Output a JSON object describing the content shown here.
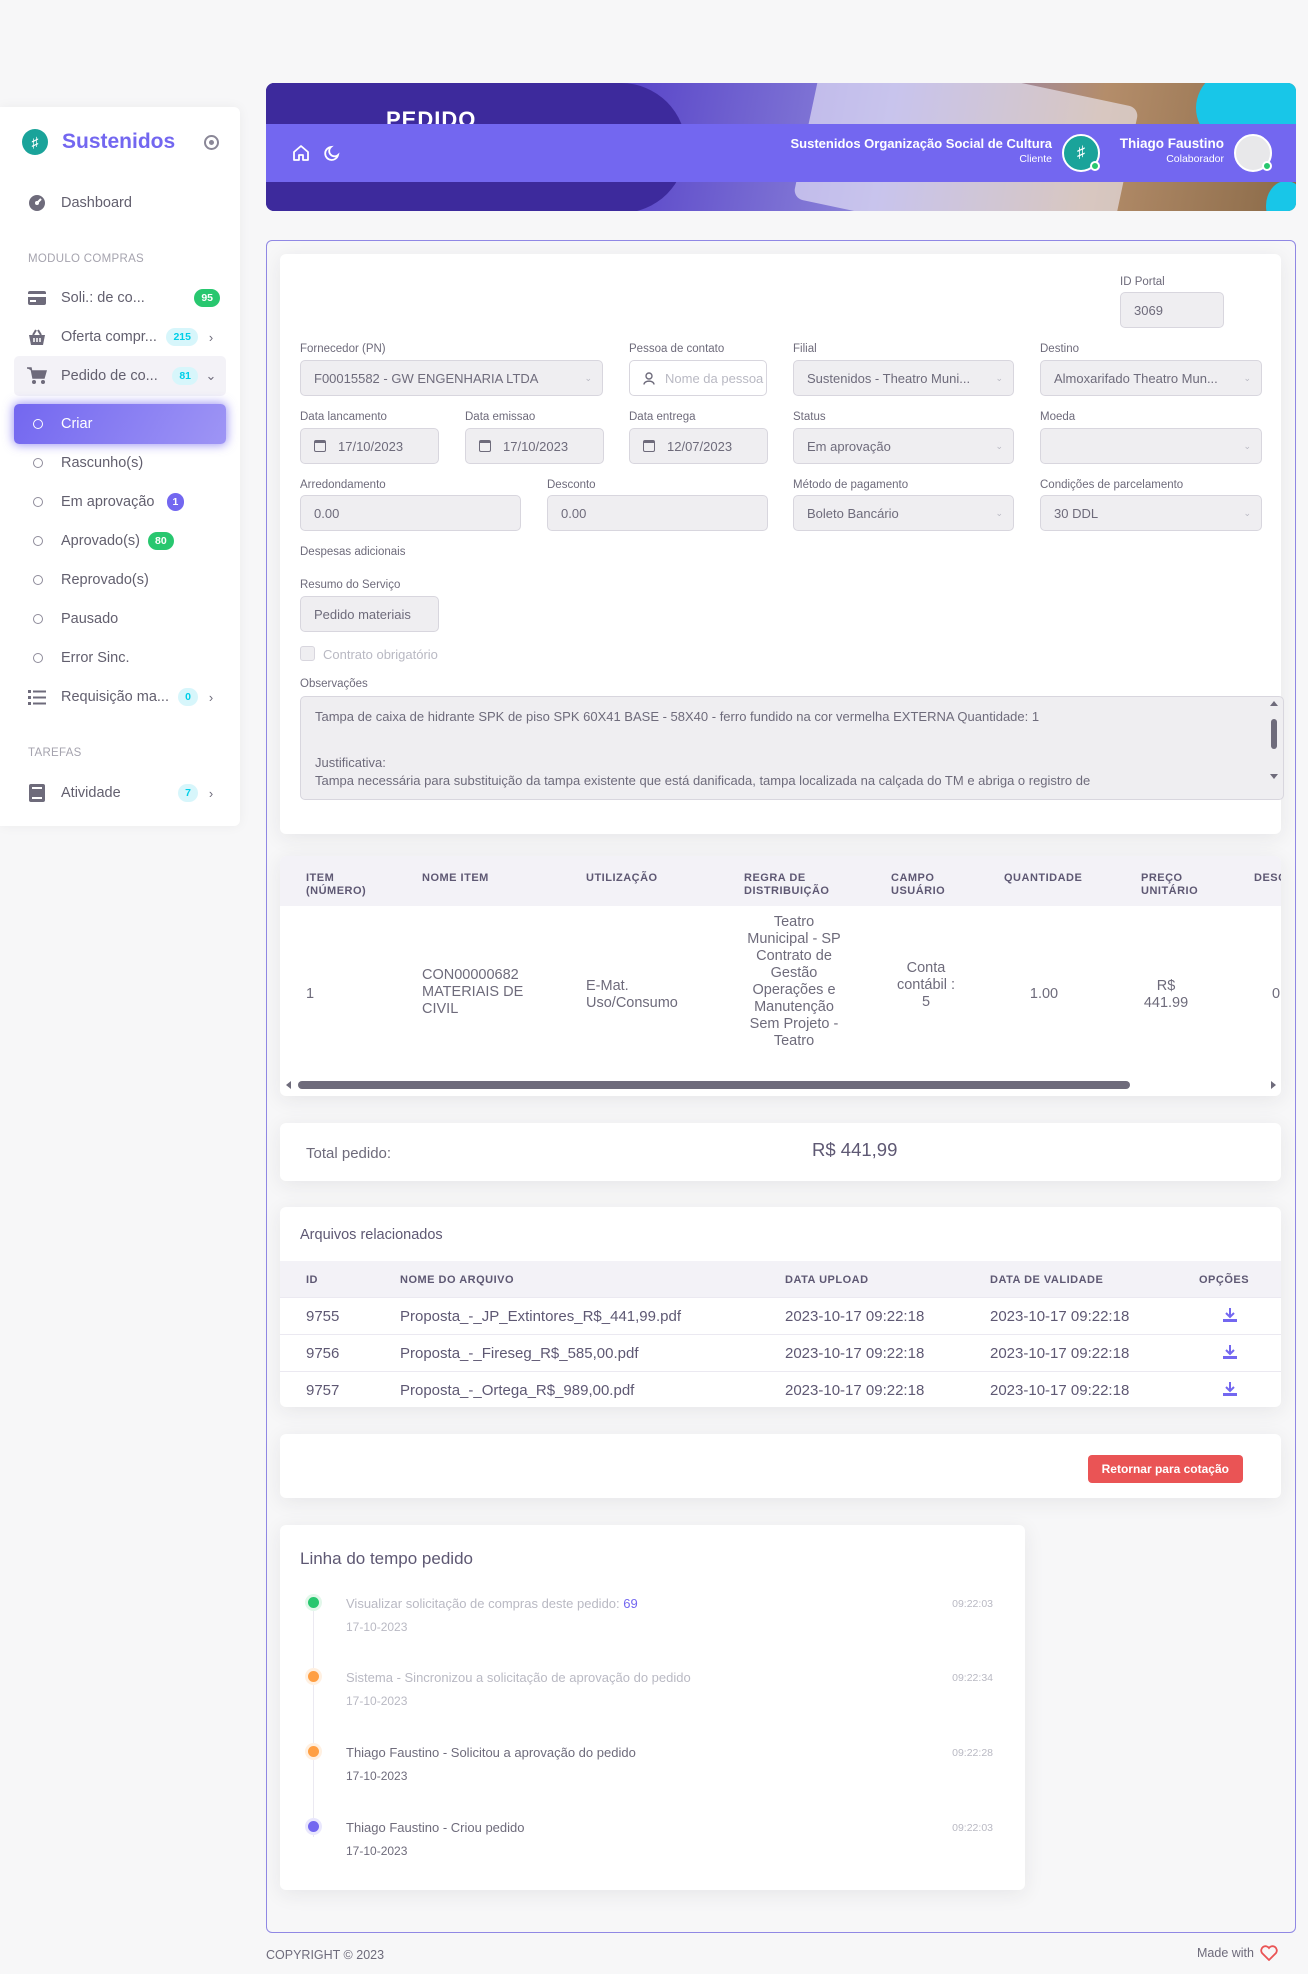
{
  "brand": {
    "name": "Sustenidos"
  },
  "sidebar": {
    "dashboard": "Dashboard",
    "section_compras": "MODULO COMPRAS",
    "solicitacao": {
      "label": "Soli.: de co...",
      "badge": "95"
    },
    "oferta": {
      "label": "Oferta compr...",
      "badge": "215"
    },
    "pedido": {
      "label": "Pedido de co...",
      "badge": "81"
    },
    "sub": [
      {
        "label": "Criar"
      },
      {
        "label": "Rascunho(s)"
      },
      {
        "label": "Em aprovação",
        "badge": "1"
      },
      {
        "label": "Aprovado(s)",
        "badge": "80"
      },
      {
        "label": "Reprovado(s)"
      },
      {
        "label": "Pausado"
      },
      {
        "label": "Error Sinc."
      }
    ],
    "requisicao": {
      "label": "Requisição ma...",
      "badge": "0"
    },
    "section_tarefas": "TAREFAS",
    "atividade": {
      "label": "Atividade",
      "badge": "7"
    }
  },
  "header": {
    "banner_title": "PEDIDO",
    "org_name": "Sustenidos Organização Social de Cultura",
    "org_role": "Cliente",
    "user_name": "Thiago Faustino",
    "user_role": "Colaborador"
  },
  "form": {
    "id_portal": {
      "label": "ID Portal",
      "value": "3069"
    },
    "fornecedor": {
      "label": "Fornecedor (PN)",
      "value": "F00015582 - GW ENGENHARIA LTDA"
    },
    "contato": {
      "label": "Pessoa de contato",
      "placeholder": "Nome da pessoa"
    },
    "filial": {
      "label": "Filial",
      "value": "Sustenidos - Theatro Muni..."
    },
    "destino": {
      "label": "Destino",
      "value": "Almoxarifado Theatro Mun..."
    },
    "data_lancamento": {
      "label": "Data lancamento",
      "value": "17/10/2023"
    },
    "data_emissao": {
      "label": "Data emissao",
      "value": "17/10/2023"
    },
    "data_entrega": {
      "label": "Data entrega",
      "value": "12/07/2023"
    },
    "status": {
      "label": "Status",
      "value": "Em aprovação"
    },
    "moeda": {
      "label": "Moeda",
      "value": ""
    },
    "arredondamento": {
      "label": "Arredondamento",
      "value": "0.00"
    },
    "desconto": {
      "label": "Desconto",
      "value": "0.00"
    },
    "metodo": {
      "label": "Método de pagamento",
      "value": "Boleto Bancário"
    },
    "condicoes": {
      "label": "Condições de parcelamento",
      "value": "30 DDL"
    },
    "despesas": "Despesas adicionais",
    "resumo": {
      "label": "Resumo do Serviço",
      "value": "Pedido materiais"
    },
    "contrato": "Contrato obrigatório",
    "observacoes": {
      "label": "Observações",
      "line1": "Tampa de caixa de hidrante SPK de piso   SPK 60X41 BASE - 58X40 - ferro fundido na cor vermelha EXTERNA Quantidade: 1",
      "line2": "Justificativa:",
      "line3": "Tampa necessária para substituição da tampa existente que está danificada, tampa localizada na calçada do TM e abriga o registro de"
    }
  },
  "items_table": {
    "headers": [
      "ITEM (NÚMERO)",
      "NOME ITEM",
      "UTILIZAÇÃO",
      "REGRA DE DISTRIBUIÇÃO",
      "CAMPO USUÁRIO",
      "QUANTIDADE",
      "PREÇO UNITÁRIO",
      "DESC"
    ],
    "row": {
      "item": "1",
      "nome": "CON00000682 MATERIAIS DE CIVIL",
      "utilizacao": "E-Mat. Uso/Consumo",
      "regra": "Teatro Municipal - SP Contrato de Gestão Operações e Manutenção Sem Projeto - Teatro",
      "campo": "Conta contábil : 5",
      "quantidade": "1.00",
      "preco": "R$ 441.99",
      "desc": "0"
    }
  },
  "total": {
    "label": "Total pedido:",
    "value": "R$ 441,99"
  },
  "files": {
    "title": "Arquivos relacionados",
    "headers": [
      "ID",
      "NOME DO ARQUIVO",
      "DATA UPLOAD",
      "DATA DE VALIDADE",
      "OPÇÕES"
    ],
    "rows": [
      {
        "id": "9755",
        "name": "Proposta_-_JP_Extintores_R$_441,99.pdf",
        "upload": "2023-10-17 09:22:18",
        "validade": "2023-10-17 09:22:18"
      },
      {
        "id": "9756",
        "name": "Proposta_-_Fireseg_R$_585,00.pdf",
        "upload": "2023-10-17 09:22:18",
        "validade": "2023-10-17 09:22:18"
      },
      {
        "id": "9757",
        "name": "Proposta_-_Ortega_R$_989,00.pdf",
        "upload": "2023-10-17 09:22:18",
        "validade": "2023-10-17 09:22:18"
      }
    ]
  },
  "actions": {
    "return_label": "Retornar para cotação"
  },
  "timeline": {
    "title": "Linha do tempo pedido",
    "events": [
      {
        "text": "Visualizar solicitação de compras deste pedido: ",
        "link": "69",
        "date": "17-10-2023",
        "time": "09:22:03",
        "color": "#28c76f"
      },
      {
        "text": "Sistema - Sincronizou a solicitação de aprovação do pedido",
        "date": "17-10-2023",
        "time": "09:22:34",
        "color": "#ff9f43"
      },
      {
        "text": "Thiago Faustino - Solicitou a aprovação do pedido",
        "date": "17-10-2023",
        "time": "09:22:28",
        "color": "#ff9f43"
      },
      {
        "text": "Thiago Faustino - Criou pedido",
        "date": "17-10-2023",
        "time": "09:22:03",
        "color": "#7367f0"
      }
    ]
  },
  "footer": {
    "copyright": "COPYRIGHT © 2023",
    "made_with": "Made with"
  }
}
